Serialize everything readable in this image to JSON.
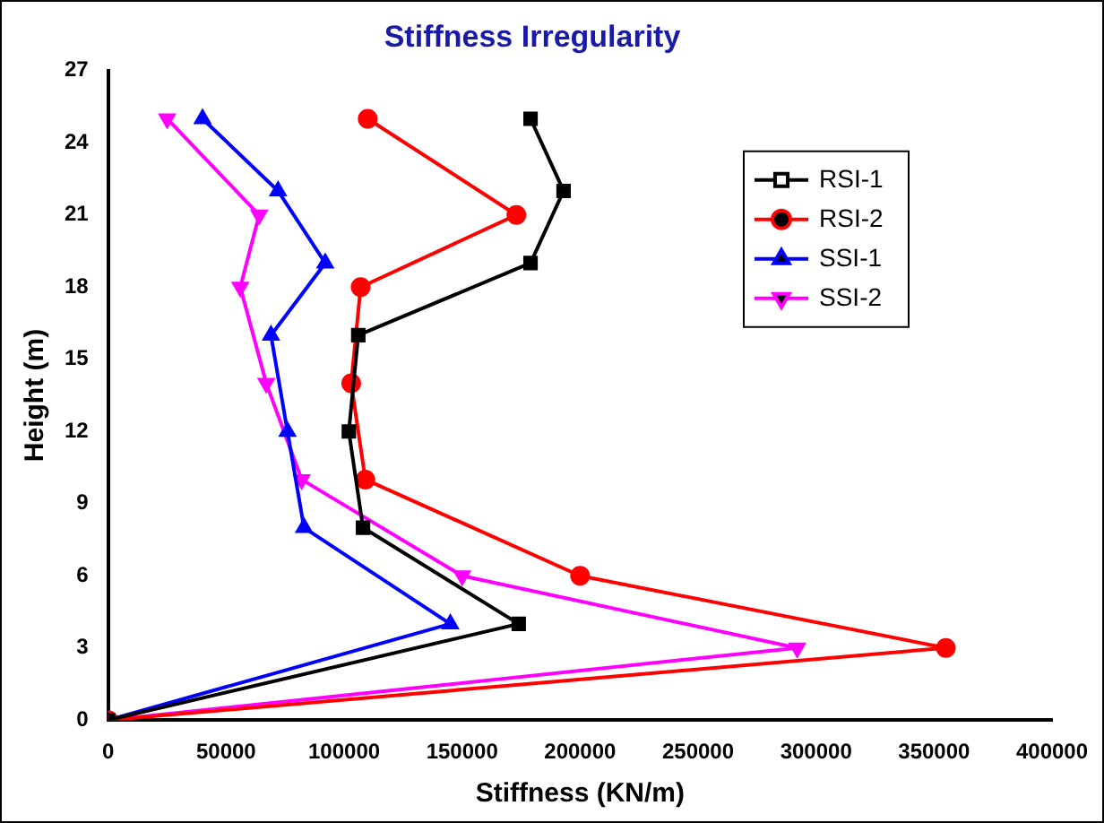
{
  "chart_data": {
    "type": "line",
    "title": "Stiffness Irregularity",
    "xlabel": "Stiffness (KN/m)",
    "ylabel": "Height (m)",
    "xlim": [
      0,
      400000
    ],
    "xticks": [
      0,
      50000,
      100000,
      150000,
      200000,
      250000,
      300000,
      350000,
      400000
    ],
    "ylim": [
      0,
      27
    ],
    "yticks": [
      0,
      3,
      6,
      9,
      12,
      15,
      18,
      21,
      24,
      27
    ],
    "grid": false,
    "legend": "top right",
    "series": [
      {
        "name": "RSI-1",
        "color": "#000000",
        "marker": "square",
        "x": [
          0,
          174000,
          108000,
          102000,
          106000,
          179000,
          193000,
          179000
        ],
        "values": [
          0,
          4,
          8,
          12,
          16,
          19,
          22,
          25
        ]
      },
      {
        "name": "RSI-2",
        "color": "#ff0000",
        "marker": "circle",
        "x": [
          0,
          355000,
          200000,
          109000,
          103000,
          107000,
          173000,
          110000
        ],
        "values": [
          0,
          3,
          6,
          10,
          14,
          18,
          21,
          25
        ]
      },
      {
        "name": "SSI-1",
        "color": "#0000ff",
        "marker": "triangle",
        "x": [
          0,
          145000,
          83000,
          76000,
          69000,
          92000,
          72000,
          40000
        ],
        "values": [
          0,
          4,
          8,
          12,
          16,
          19,
          22,
          25
        ]
      },
      {
        "name": "SSI-2",
        "color": "#ff00ff",
        "marker": "triangle-down",
        "x": [
          0,
          292000,
          150000,
          82000,
          67000,
          56000,
          64000,
          25000
        ],
        "values": [
          0,
          3,
          6,
          10,
          14,
          18,
          21,
          25
        ]
      }
    ]
  }
}
